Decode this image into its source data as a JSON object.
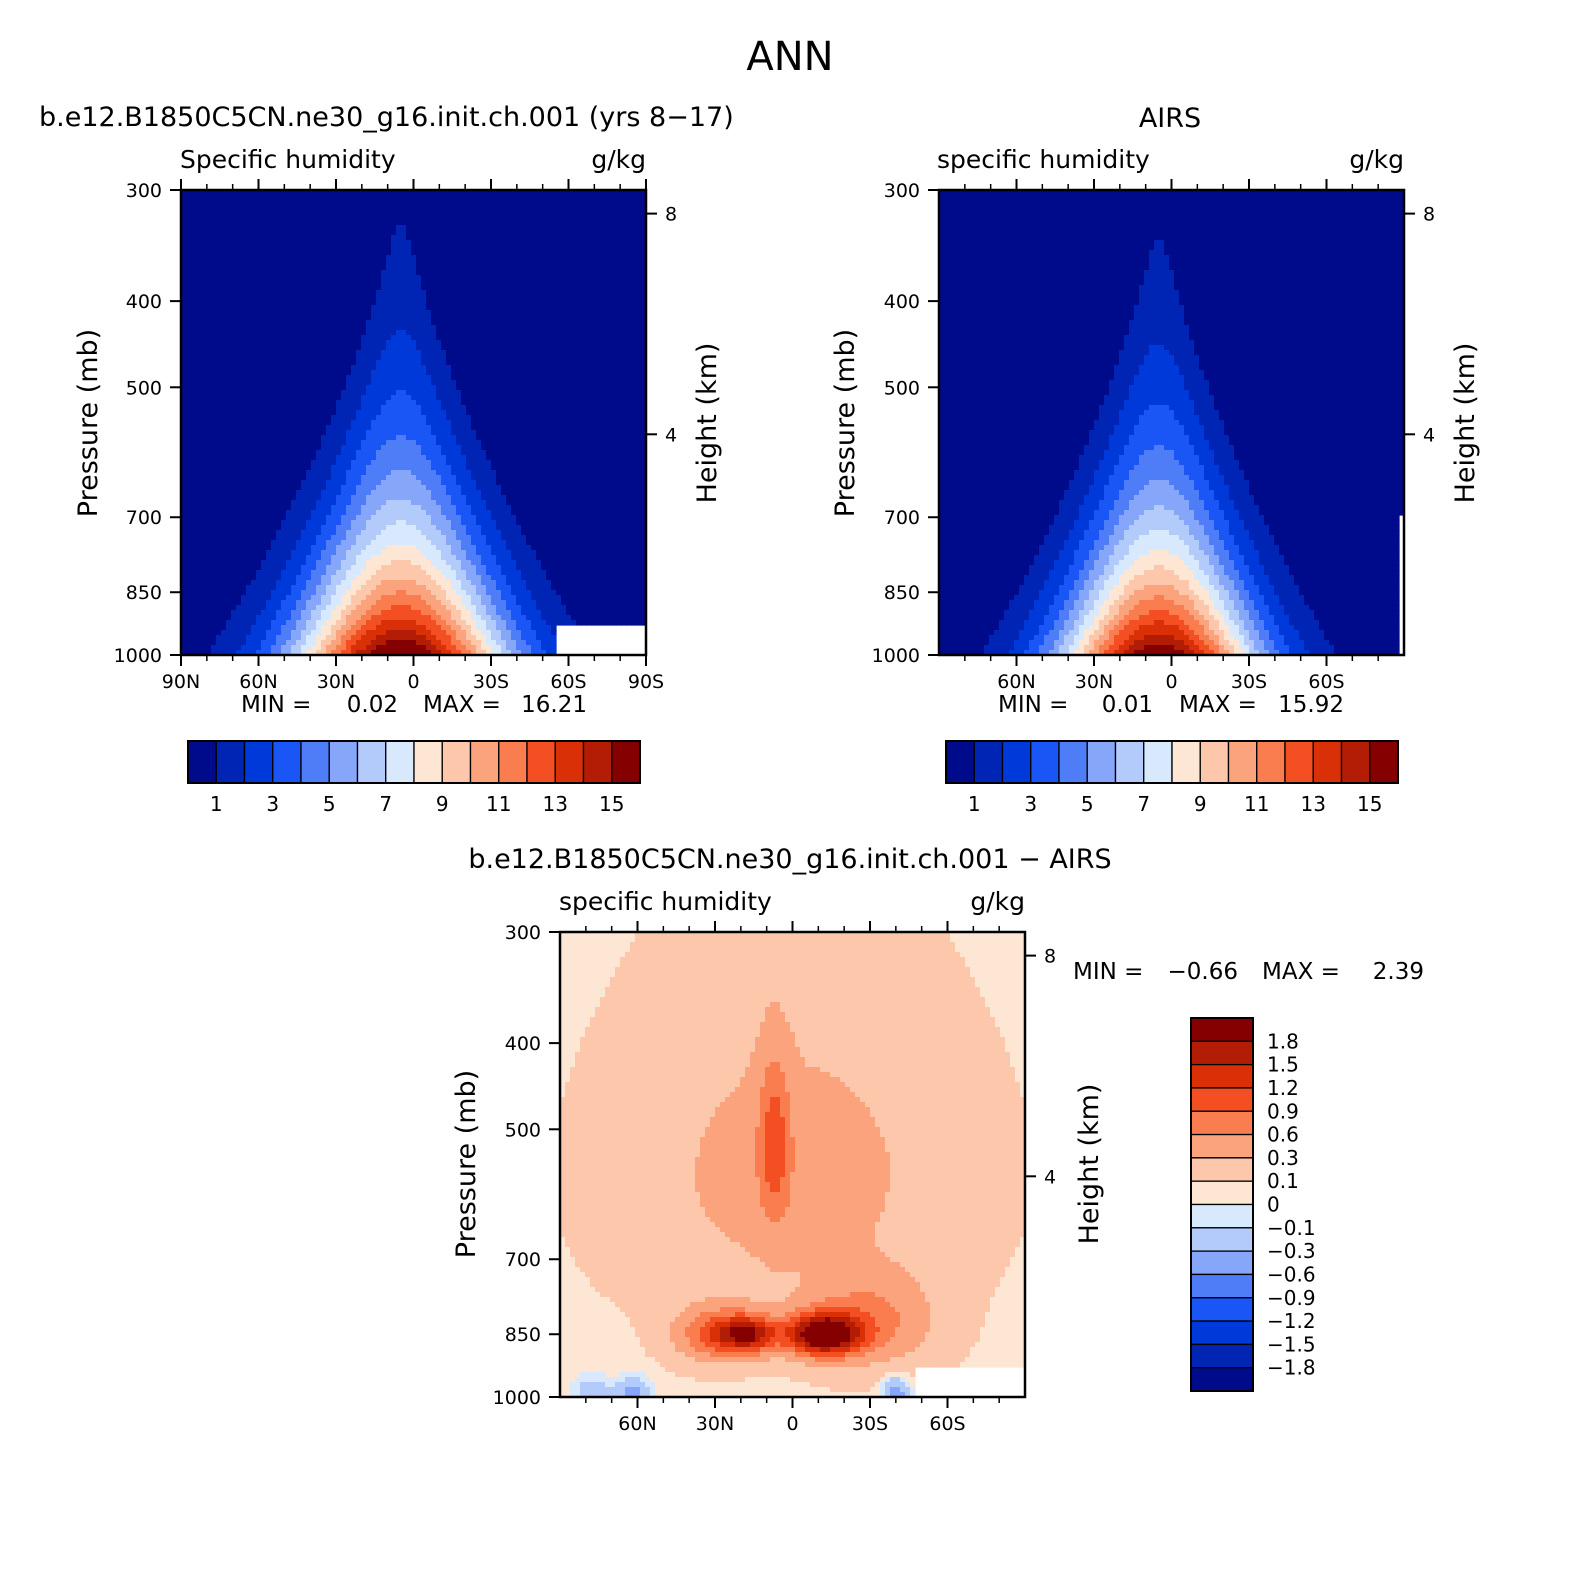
{
  "figure": {
    "title": "ANN"
  },
  "chart_data": [
    {
      "type": "heatmap",
      "title": "b.e12.B1850C5CN.ne30_g16.init.ch.001 (yrs 8−17)",
      "variable": "Specific humidity",
      "units": "g/kg",
      "xlabel": "",
      "ylabel": "Pressure (mb)",
      "right_label": "Height (km)",
      "x_ticks": [
        "90N",
        "60N",
        "30N",
        "0",
        "30S",
        "60S",
        "90S"
      ],
      "x_tick_values": [
        90,
        60,
        30,
        0,
        -30,
        -60,
        -90
      ],
      "y_ticks": [
        "300",
        "400",
        "500",
        "700",
        "850",
        "1000"
      ],
      "y_tick_values": [
        300,
        400,
        500,
        700,
        850,
        1000
      ],
      "right_ticks": [
        "8",
        "4"
      ],
      "right_tick_values": [
        8,
        4
      ],
      "xlim": [
        90,
        -90
      ],
      "ylim": [
        1000,
        300
      ],
      "min_text": "MIN =",
      "min_value": "0.02",
      "max_text": "MAX =",
      "max_value": "16.21",
      "colorbar_orientation": "horizontal",
      "colorbar_labels": [
        "1",
        "3",
        "5",
        "7",
        "9",
        "11",
        "13",
        "15"
      ],
      "levels": [
        1,
        2,
        3,
        4,
        5,
        6,
        7,
        8,
        9,
        10,
        11,
        12,
        13,
        14,
        15
      ],
      "colors": [
        "#000b8c",
        "#0024b3",
        "#0039d9",
        "#1a55f5",
        "#4f7df7",
        "#86a6f9",
        "#b3cbfb",
        "#d9e9fd",
        "#fde6d4",
        "#fcc7aa",
        "#fba37d",
        "#fa7d50",
        "#f44f22",
        "#d93008",
        "#b31d05",
        "#850000"
      ],
      "field": {
        "peak_value": 16.21,
        "peak_lat": 5,
        "peak_pressure": 1000,
        "half_width_lat": 50,
        "vertical_scale": 0.28,
        "masked_region": {
          "lat": [
            -55,
            -90
          ],
          "pressure": [
            930,
            1000
          ]
        }
      }
    },
    {
      "type": "heatmap",
      "title": "AIRS",
      "variable": "specific humidity",
      "units": "g/kg",
      "xlabel": "",
      "ylabel": "Pressure (mb)",
      "right_label": "Height (km)",
      "x_ticks": [
        "60N",
        "30N",
        "0",
        "30S",
        "60S"
      ],
      "x_tick_values": [
        60,
        30,
        0,
        -30,
        -60
      ],
      "y_ticks": [
        "300",
        "400",
        "500",
        "700",
        "850",
        "1000"
      ],
      "y_tick_values": [
        300,
        400,
        500,
        700,
        850,
        1000
      ],
      "right_ticks": [
        "8",
        "4"
      ],
      "right_tick_values": [
        8,
        4
      ],
      "xlim": [
        90,
        -90
      ],
      "ylim": [
        1000,
        300
      ],
      "min_text": "MIN =",
      "min_value": "0.01",
      "max_text": "MAX =",
      "max_value": "15.92",
      "colorbar_orientation": "horizontal",
      "colorbar_labels": [
        "1",
        "3",
        "5",
        "7",
        "9",
        "11",
        "13",
        "15"
      ],
      "levels": [
        1,
        2,
        3,
        4,
        5,
        6,
        7,
        8,
        9,
        10,
        11,
        12,
        13,
        14,
        15
      ],
      "colors": [
        "#000b8c",
        "#0024b3",
        "#0039d9",
        "#1a55f5",
        "#4f7df7",
        "#86a6f9",
        "#b3cbfb",
        "#d9e9fd",
        "#fde6d4",
        "#fcc7aa",
        "#fba37d",
        "#fa7d50",
        "#f44f22",
        "#d93008",
        "#b31d05",
        "#850000"
      ],
      "field": {
        "peak_value": 15.92,
        "peak_lat": 5,
        "peak_pressure": 1000,
        "half_width_lat": 46,
        "vertical_scale": 0.27,
        "masked_region": {
          "lat": [
            -88,
            -90
          ],
          "pressure": [
            700,
            1000
          ]
        }
      }
    },
    {
      "type": "heatmap",
      "title": "b.e12.B1850C5CN.ne30_g16.init.ch.001 − AIRS",
      "variable": "specific humidity",
      "units": "g/kg",
      "xlabel": "",
      "ylabel": "Pressure (mb)",
      "right_label": "Height (km)",
      "x_ticks": [
        "60N",
        "30N",
        "0",
        "30S",
        "60S"
      ],
      "x_tick_values": [
        60,
        30,
        0,
        -30,
        -60
      ],
      "y_ticks": [
        "300",
        "400",
        "500",
        "700",
        "850",
        "1000"
      ],
      "y_tick_values": [
        300,
        400,
        500,
        700,
        850,
        1000
      ],
      "right_ticks": [
        "8",
        "4"
      ],
      "right_tick_values": [
        8,
        4
      ],
      "xlim": [
        90,
        -90
      ],
      "ylim": [
        1000,
        300
      ],
      "min_text": "MIN =",
      "min_value": "−0.66",
      "max_text": "MAX =",
      "max_value": "2.39",
      "colorbar_orientation": "vertical",
      "colorbar_labels": [
        "1.8",
        "1.5",
        "1.2",
        "0.9",
        "0.6",
        "0.3",
        "0.1",
        "0",
        "−0.1",
        "−0.3",
        "−0.6",
        "−0.9",
        "−1.2",
        "−1.5",
        "−1.8"
      ],
      "levels": [
        -1.8,
        -1.5,
        -1.2,
        -0.9,
        -0.6,
        -0.3,
        -0.1,
        0,
        0.1,
        0.3,
        0.6,
        0.9,
        1.2,
        1.5,
        1.8
      ],
      "colors": [
        "#000b8c",
        "#0024b3",
        "#0039d9",
        "#1a55f5",
        "#4f7df7",
        "#86a6f9",
        "#b3cbfb",
        "#d9e9fd",
        "#fde6d4",
        "#fcc7aa",
        "#fba37d",
        "#fa7d50",
        "#f44f22",
        "#d93008",
        "#b31d05",
        "#850000"
      ],
      "field": {
        "base_value": 0.08,
        "blobs": [
          {
            "lat": -12,
            "pressure": 850,
            "amp": 2.2,
            "wlat": 14,
            "wp": 45
          },
          {
            "lat": 17,
            "pressure": 850,
            "amp": 1.5,
            "wlat": 11,
            "wp": 40
          },
          {
            "lat": 30,
            "pressure": 850,
            "amp": 0.9,
            "wlat": 14,
            "wp": 55
          },
          {
            "lat": -30,
            "pressure": 820,
            "amp": 0.6,
            "wlat": 22,
            "wp": 90
          },
          {
            "lat": 7,
            "pressure": 520,
            "amp": 0.75,
            "wlat": 6,
            "wp": 110
          },
          {
            "lat": 0,
            "pressure": 560,
            "amp": 0.35,
            "wlat": 55,
            "wp": 200
          },
          {
            "lat": 62,
            "pressure": 990,
            "amp": -0.45,
            "wlat": 7,
            "wp": 40
          },
          {
            "lat": -40,
            "pressure": 990,
            "amp": -0.55,
            "wlat": 5,
            "wp": 40
          },
          {
            "lat": 78,
            "pressure": 980,
            "amp": -0.25,
            "wlat": 8,
            "wp": 40
          }
        ],
        "masked_region": {
          "lat": [
            -47,
            -90
          ],
          "pressure": [
            920,
            1000
          ]
        }
      }
    }
  ]
}
